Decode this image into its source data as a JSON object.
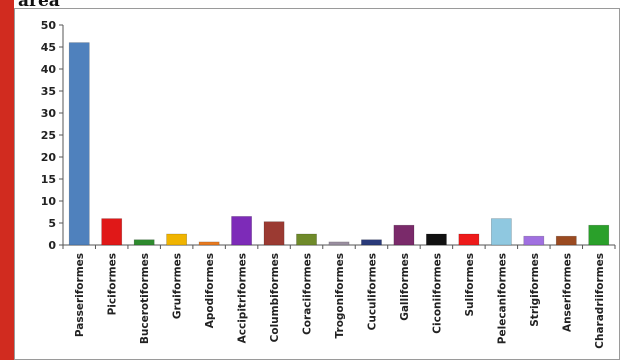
{
  "title_fragment": "area",
  "chart_data": {
    "type": "bar",
    "title": "",
    "xlabel": "",
    "ylabel": "",
    "ylim": [
      0,
      50
    ],
    "yticks": [
      0,
      5,
      10,
      15,
      20,
      25,
      30,
      35,
      40,
      45,
      50
    ],
    "grid": false,
    "legend": "none",
    "categories": [
      "Passeriformes",
      "Piciformes",
      "Bucerotiformes",
      "Gruiformes",
      "Apodiformes",
      "Accipitriformes",
      "Columbiformes",
      "Coraciiformes",
      "Trogoniformes",
      "Cuculiformes",
      "Galliformes",
      "Ciconiiformes",
      "Suliformes",
      "Pelecaniformes",
      "Strigiformes",
      "Anseriformes",
      "Charadriiformes"
    ],
    "values": [
      46,
      6,
      1.2,
      2.5,
      0.7,
      6.5,
      5.3,
      2.5,
      0.7,
      1.2,
      4.5,
      2.5,
      2.5,
      6,
      2,
      2,
      4.5
    ],
    "colors": [
      "#4f81bd",
      "#e01818",
      "#2e8a2e",
      "#f0b400",
      "#e87a20",
      "#7d2bb8",
      "#9b3a32",
      "#6f8a2a",
      "#9a8fa0",
      "#2a3a7a",
      "#7a2a6a",
      "#111111",
      "#ee1a1a",
      "#8fc8e0",
      "#a070e0",
      "#9a4a20",
      "#2aa02a"
    ]
  }
}
